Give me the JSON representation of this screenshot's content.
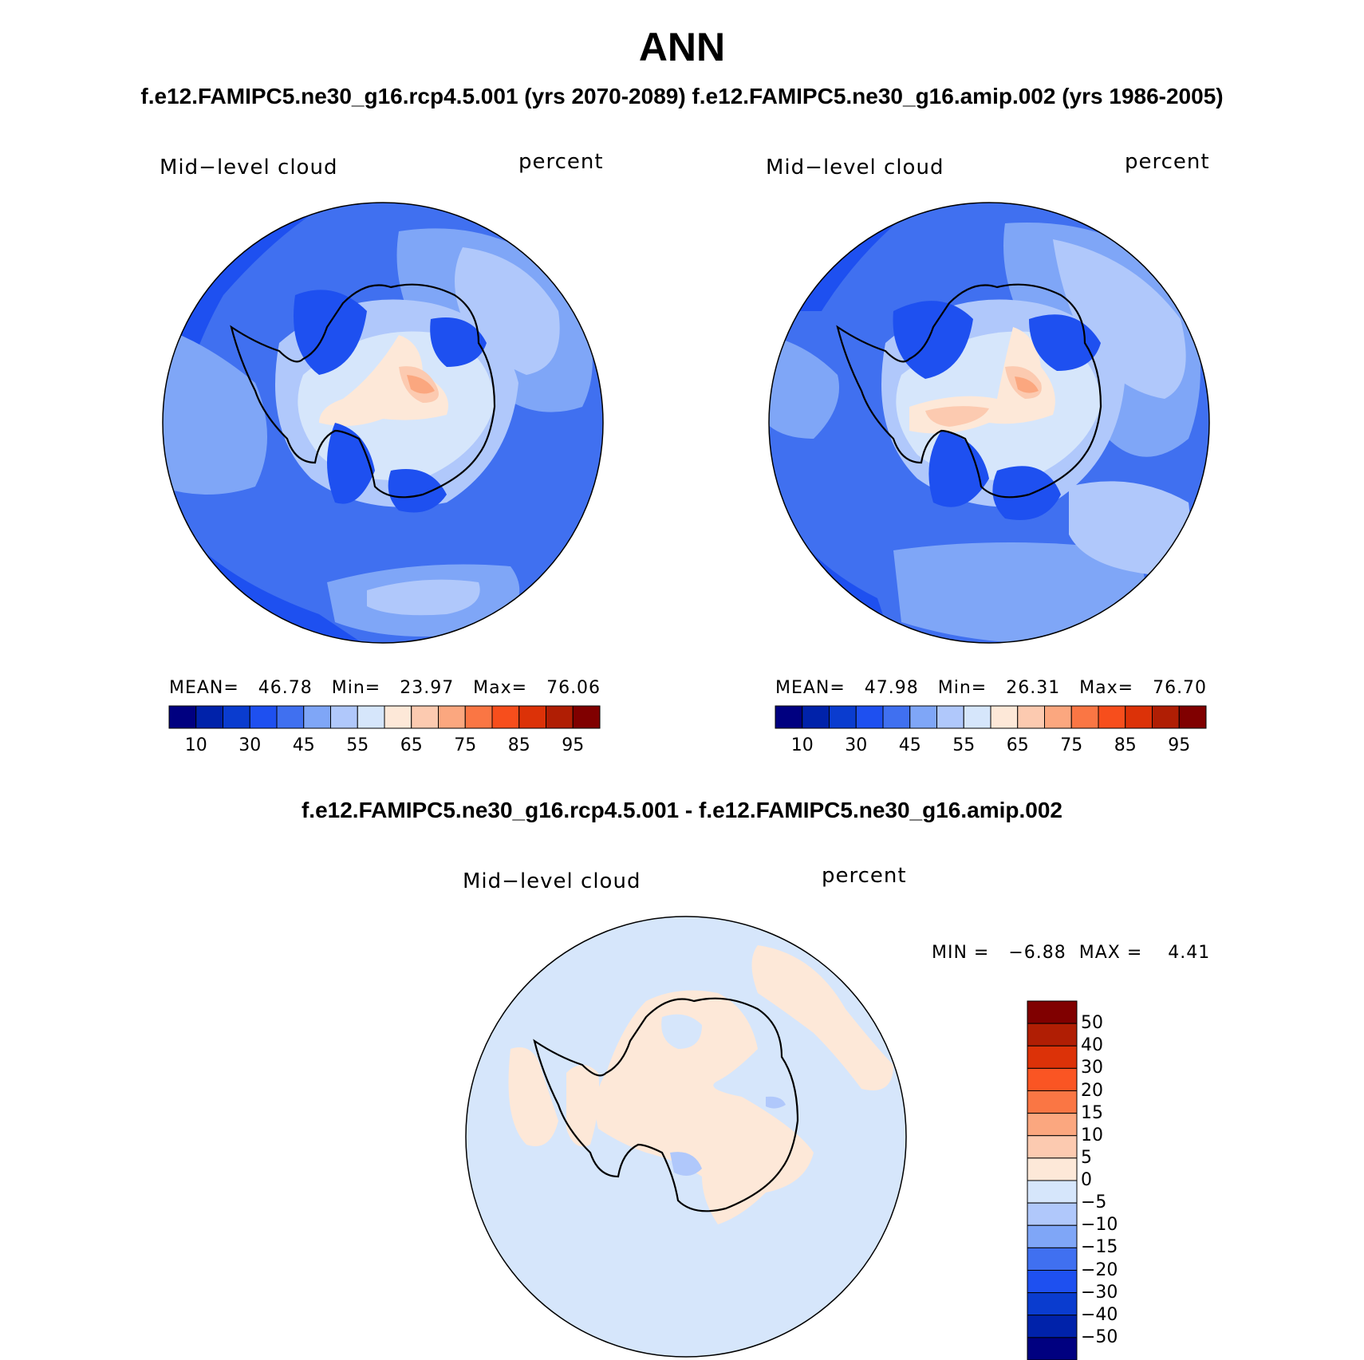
{
  "main_title": "ANN",
  "subtitle_top": "f.e12.FAMIPC5.ne30_g16.rcp4.5.001 (yrs 2070-2089)   f.e12.FAMIPC5.ne30_g16.amip.002 (yrs 1986-2005)",
  "subtitle_diff": "f.e12.FAMIPC5.ne30_g16.rcp4.5.001 - f.e12.FAMIPC5.ne30_g16.amip.002",
  "panels": [
    {
      "variable": "Mid−level cloud",
      "units": "percent",
      "stats": "MEAN=   46.78   Min=   23.97   Max=   76.06"
    },
    {
      "variable": "Mid−level cloud",
      "units": "percent",
      "stats": "MEAN=   47.98   Min=   26.31   Max=   76.70"
    },
    {
      "variable": "Mid−level cloud",
      "units": "percent",
      "stats": "MIN =   −6.88  MAX =    4.41"
    }
  ],
  "colorbar_abs": {
    "colors": [
      "#000080",
      "#0022aa",
      "#0a3ccf",
      "#1e50f0",
      "#4070f0",
      "#7fa6f7",
      "#b0c8fb",
      "#d6e6fb",
      "#fde8d8",
      "#fccab0",
      "#fba77f",
      "#fa7644",
      "#f74e1c",
      "#dc3208",
      "#b01e04",
      "#800000"
    ],
    "labels": [
      "10",
      "30",
      "45",
      "55",
      "65",
      "75",
      "85",
      "95"
    ]
  },
  "colorbar_diff": {
    "colors": [
      "#800000",
      "#b01e04",
      "#dc3208",
      "#fa5523",
      "#fa7644",
      "#fba77f",
      "#fccab0",
      "#fde8d8",
      "#d6e6fb",
      "#b0c8fb",
      "#7fa6f7",
      "#4070f0",
      "#1e50f0",
      "#0a3ccf",
      "#0022aa",
      "#000080"
    ],
    "labels": [
      "50",
      "40",
      "30",
      "20",
      "15",
      "10",
      "5",
      "0",
      "−5",
      "−10",
      "−15",
      "−20",
      "−30",
      "−40",
      "−50"
    ]
  },
  "map_colors": {
    "deep": "#1e50f0",
    "mid": "#4070f0",
    "light": "#7fa6f7",
    "pale": "#b0c8fb",
    "palest": "#d6e6fb",
    "warm1": "#fde8d8",
    "warm2": "#fccab0",
    "warm3": "#fba77f"
  }
}
